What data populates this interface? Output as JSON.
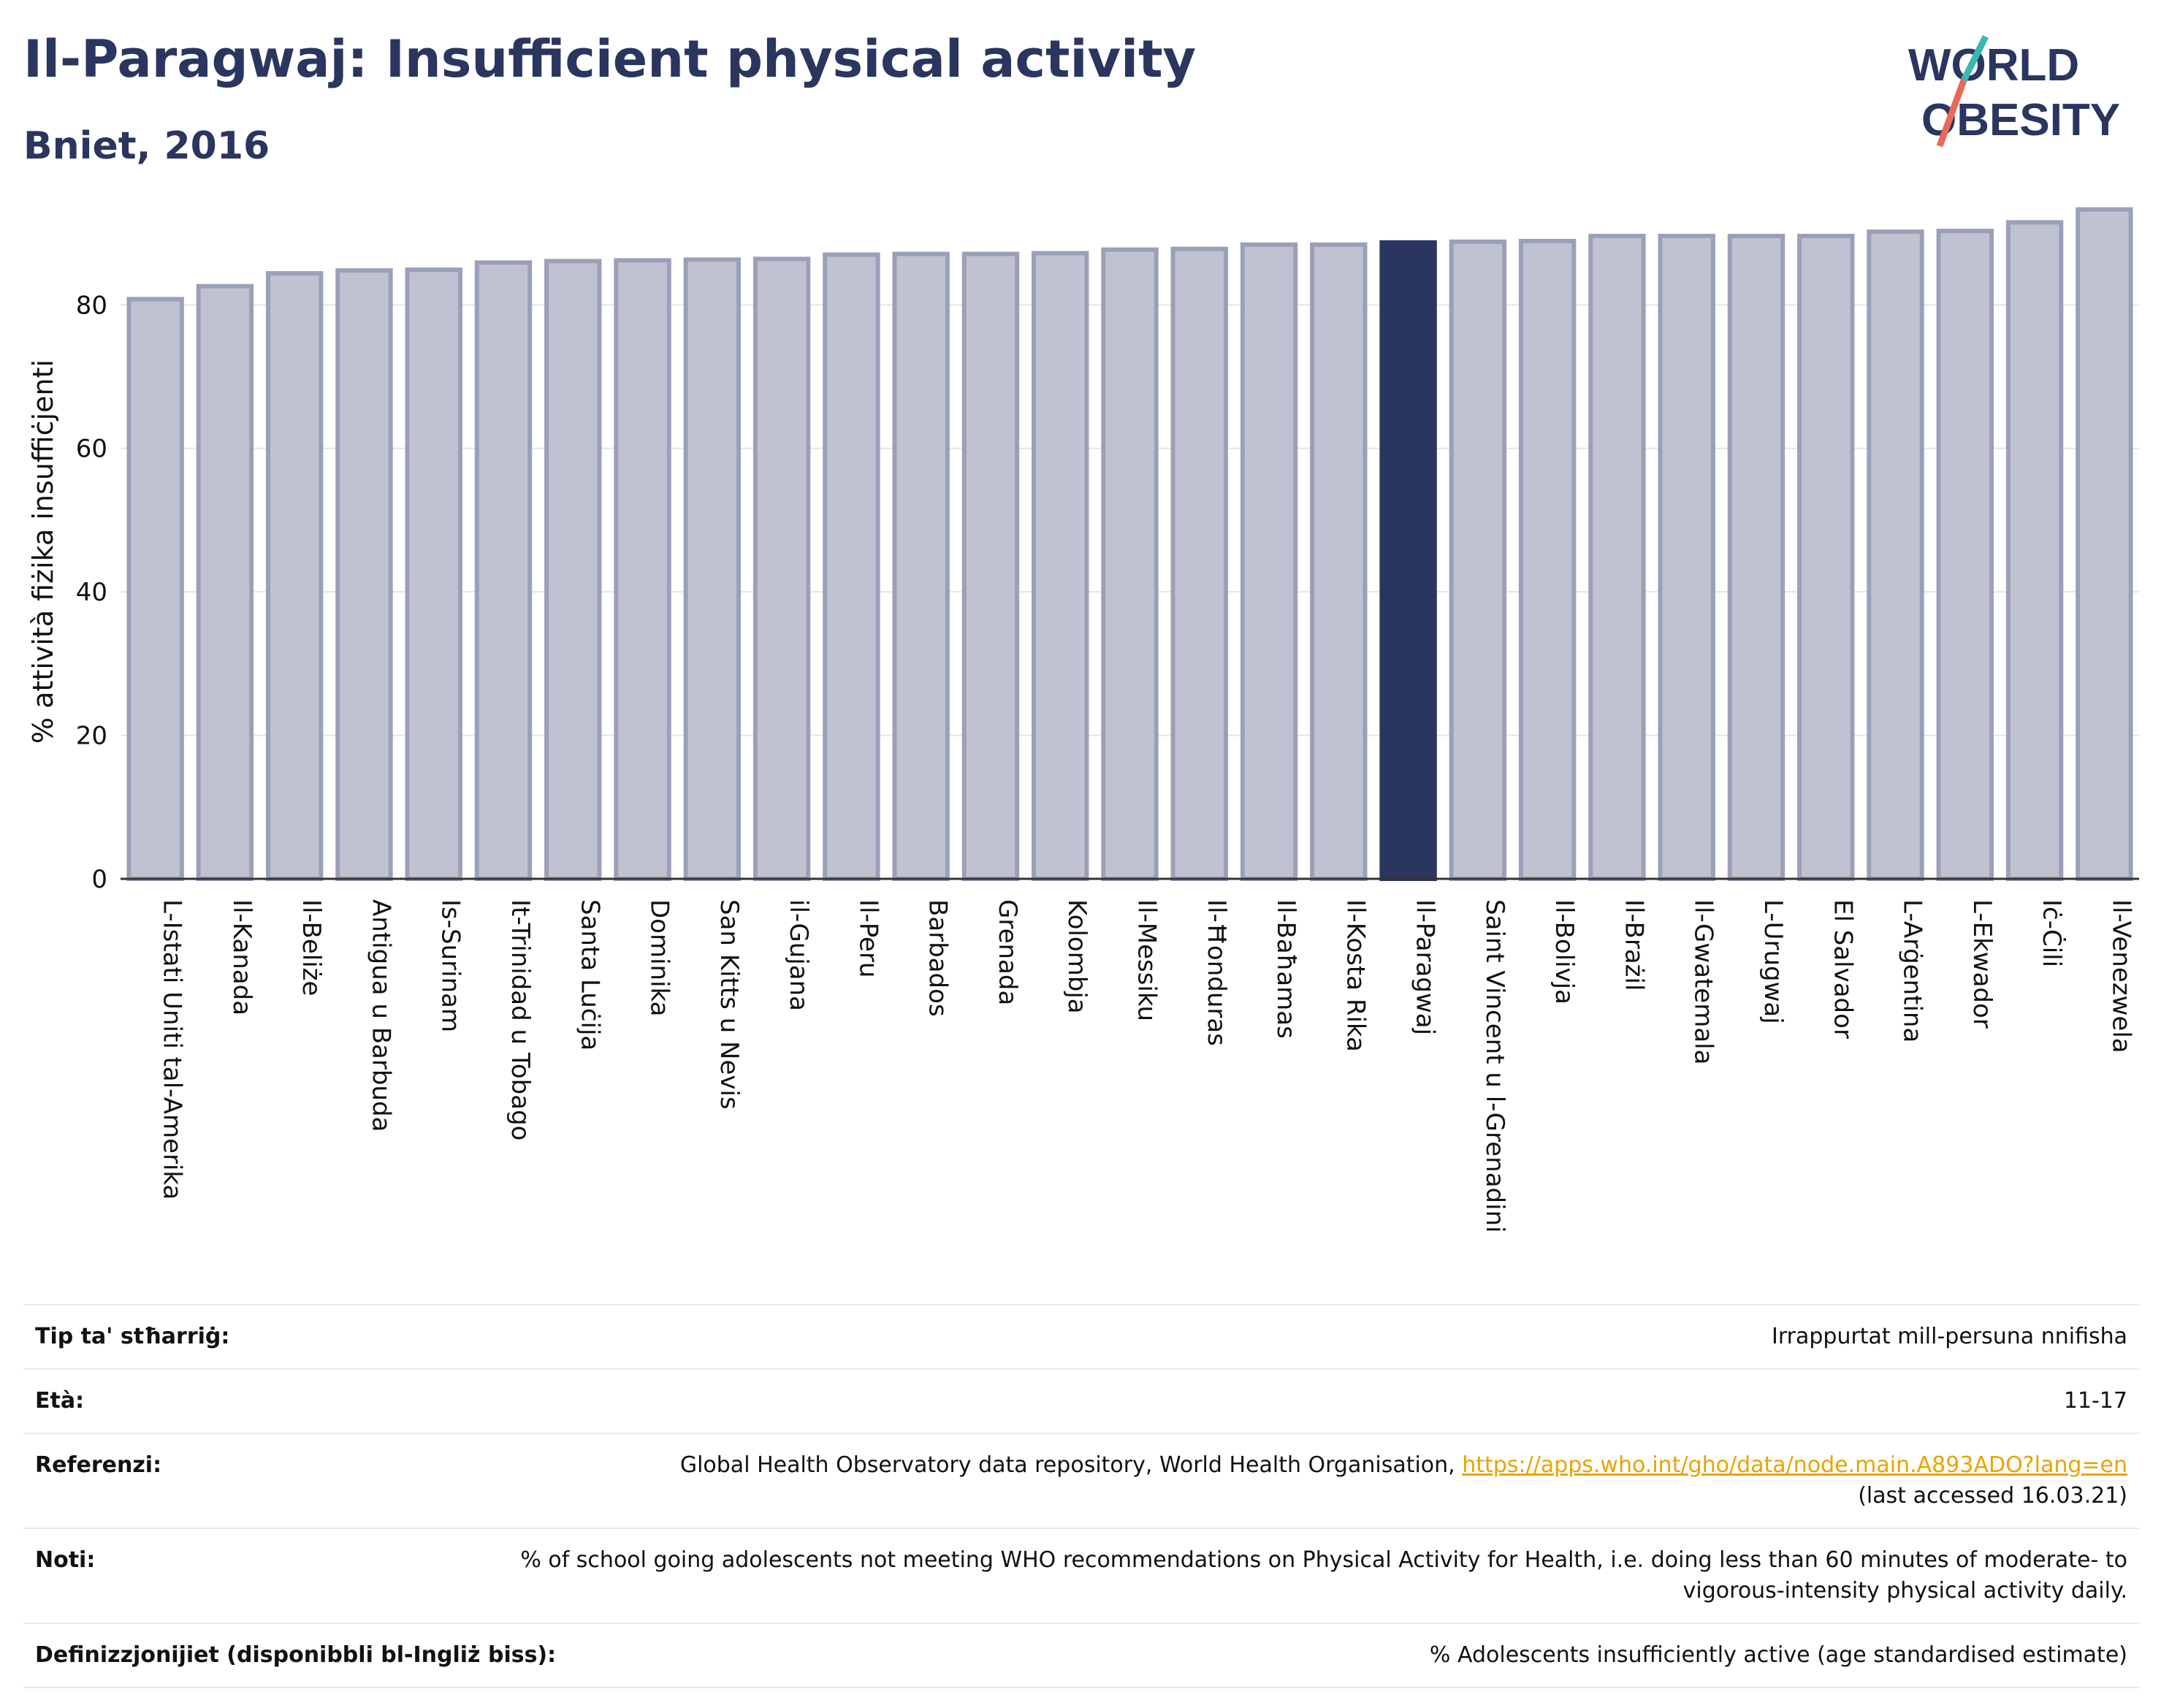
{
  "header": {
    "title": "Il-Paragwaj: Insufficient physical activity",
    "subtitle": "Bniet, 2016"
  },
  "logo": {
    "line1": "WORLD",
    "line2": "OBESITY",
    "accent_teal": "#3bb8b0",
    "accent_coral": "#e8685a"
  },
  "colors": {
    "bar": "#bfc3d1",
    "bar_edge": "#9aa0b8",
    "highlight": "#2a3560"
  },
  "chart_data": {
    "type": "bar",
    "title": "Il-Paragwaj: Insufficient physical activity",
    "subtitle": "Bniet, 2016",
    "xlabel": "",
    "ylabel": "% attività fiżika insuffiċjenti",
    "ylim": [
      0,
      95
    ],
    "yticks": [
      0,
      20,
      40,
      60,
      80
    ],
    "grid": true,
    "highlight": "Il-Paragwaj",
    "categories": [
      "L-Istati Uniti tal-Amerika",
      "Il-Kanada",
      "Il-Beliże",
      "Antigua u Barbuda",
      "Is-Surinam",
      "It-Trinidad u Tobago",
      "Santa Luċija",
      "Dominika",
      "San Kitts u Nevis",
      "il-Gujana",
      "Il-Peru",
      "Barbados",
      "Grenada",
      "Kolombja",
      "Il-Messiku",
      "Il-Ħonduras",
      "Il-Baħamas",
      "Il-Kosta Rika",
      "Il-Paragwaj",
      "Saint Vincent u l-Grenadini",
      "Il-Bolivja",
      "Il-Brażil",
      "Il-Gwatemala",
      "L-Urugwaj",
      "El Salvador",
      "L-Arġentina",
      "L-Ekwador",
      "Iċ-Ċili",
      "Il-Venezwela"
    ],
    "values": [
      80.8,
      82.6,
      84.4,
      84.8,
      84.9,
      85.9,
      86.1,
      86.2,
      86.3,
      86.4,
      87.0,
      87.1,
      87.1,
      87.2,
      87.7,
      87.8,
      88.4,
      88.4,
      88.7,
      88.8,
      88.9,
      89.6,
      89.6,
      89.6,
      89.6,
      90.2,
      90.3,
      91.5,
      93.3
    ]
  },
  "meta": {
    "rows": [
      {
        "label": "Tip ta' stħarriġ:",
        "value": "Irrappurtat mill-persuna nnifisha"
      },
      {
        "label": "Età:",
        "value": "11-17"
      },
      {
        "label": "Referenzi:",
        "value": "Global Health Observatory data repository, World Health Organisation,",
        "link": "https://apps.who.int/gho/data/node.main.A893ADO?lang=en",
        "value2": "(last accessed 16.03.21)"
      },
      {
        "label": "Noti:",
        "value": "% of school going adolescents not meeting WHO recommendations on Physical Activity for Health, i.e. doing less than 60 minutes of moderate- to vigorous-intensity physical activity daily."
      },
      {
        "label": "Definizzjonijiet (disponibbli bl-Ingliż biss):",
        "value": "% Adolescents insufficiently active (age standardised estimate)"
      }
    ]
  }
}
